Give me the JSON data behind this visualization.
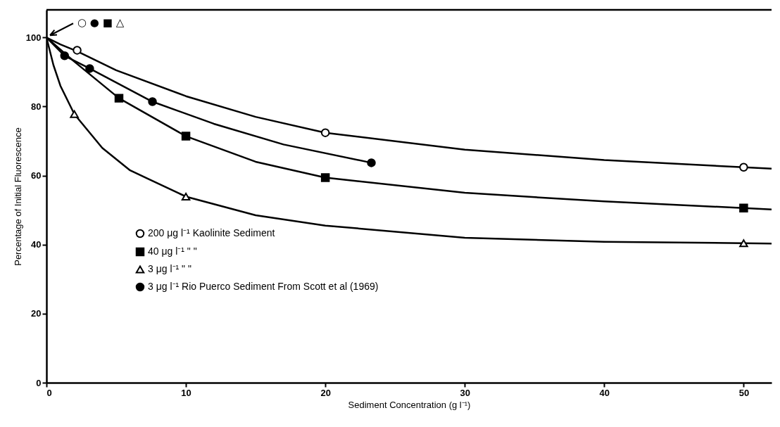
{
  "chart_data": {
    "type": "scatter",
    "xlabel": "Sediment Concentration (g l⁻¹)",
    "ylabel": "Percentage of Initial Fluorescence",
    "xlim": [
      0,
      52
    ],
    "ylim": [
      0,
      108
    ],
    "xticks": [
      0,
      10,
      20,
      30,
      40,
      50
    ],
    "yticks": [
      0,
      20,
      40,
      60,
      80,
      100
    ],
    "grid": false,
    "legend": "bottom left",
    "annotations": [
      {
        "text": "○ ● ■ △",
        "x": 0,
        "y": 100
      }
    ],
    "series": [
      {
        "type": "line",
        "color": "#000000",
        "marker": "none",
        "x": [
          0,
          1,
          2.2,
          5,
          10,
          15,
          20,
          30,
          40,
          50,
          52
        ],
        "values": [
          100,
          98,
          96,
          90.5,
          83,
          77,
          72.4,
          67.5,
          64.5,
          62.4,
          62
        ]
      },
      {
        "type": "line",
        "color": "#000000",
        "marker": "none",
        "x": [
          0,
          2,
          5.2,
          10,
          15,
          20,
          30,
          40,
          50,
          52
        ],
        "values": [
          100,
          93,
          82.4,
          71.4,
          64,
          59.4,
          55,
          52.5,
          50.6,
          50.2
        ]
      },
      {
        "type": "line",
        "color": "#000000",
        "marker": "none",
        "x": [
          0,
          0.5,
          1,
          2,
          4,
          6,
          10,
          15,
          20,
          30,
          40,
          50,
          52
        ],
        "values": [
          100,
          92,
          86,
          77.8,
          68,
          61.5,
          53.9,
          48.5,
          45.5,
          42,
          40.8,
          40.4,
          40.3
        ]
      },
      {
        "type": "line",
        "color": "#000000",
        "marker": "none",
        "x": [
          0,
          1.3,
          3.1,
          7.6,
          12,
          17,
          23.3
        ],
        "values": [
          100,
          94.7,
          91,
          81.4,
          75,
          69,
          63.7
        ]
      },
      {
        "name": "200 μg l⁻¹ Kaolinite Sediment",
        "color": "#ffffff",
        "marker": "circle",
        "x": [
          2.2,
          20,
          50
        ],
        "values": [
          96.3,
          72.4,
          62.4
        ]
      },
      {
        "name": "40 μg l⁻¹      \"           \"",
        "color": "#000000",
        "marker": "square",
        "x": [
          5.2,
          10,
          20,
          50
        ],
        "values": [
          82.4,
          71.4,
          59.4,
          50.6
        ]
      },
      {
        "name": "3 μg l⁻¹      \"           \"",
        "color": "#ffffff",
        "marker": "triangle",
        "x": [
          2,
          10,
          50
        ],
        "values": [
          77.8,
          53.9,
          40.4
        ]
      },
      {
        "name": "3 μg l⁻¹  Rio Puerco Sediment From Scott et al (1969)",
        "color": "#000000",
        "marker": "circle",
        "x": [
          1.3,
          3.1,
          7.6,
          23.3
        ],
        "values": [
          94.7,
          91,
          81.4,
          63.7
        ]
      }
    ]
  }
}
